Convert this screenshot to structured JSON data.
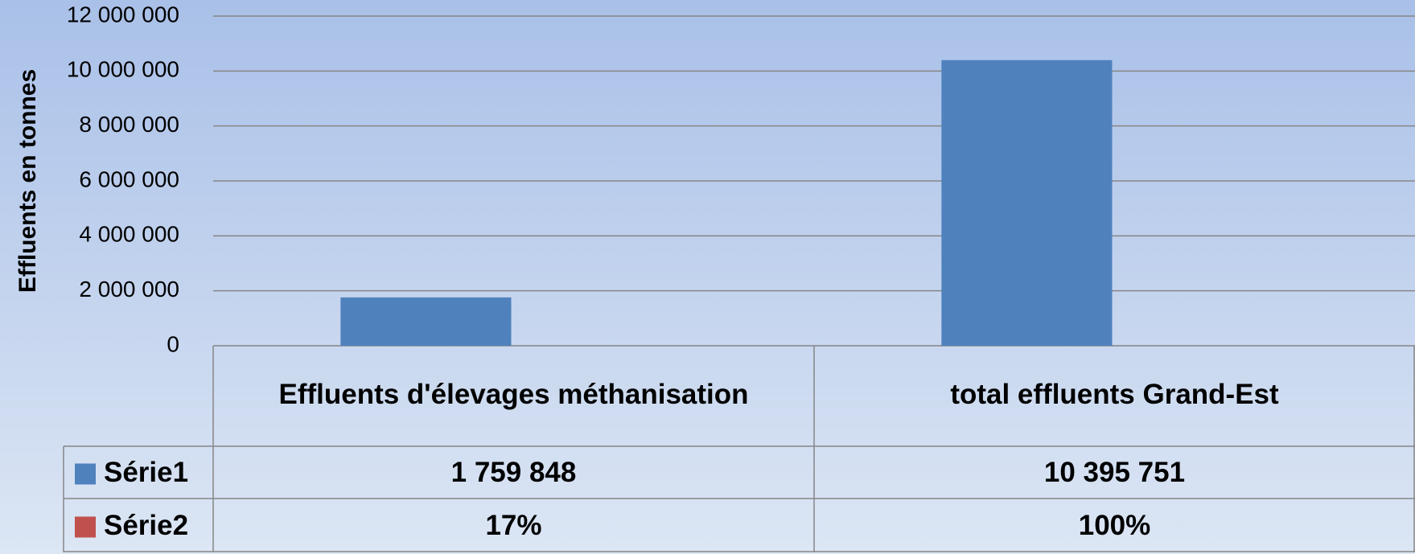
{
  "chart_data": {
    "type": "bar",
    "y_axis_label": "Effluents en tonnes",
    "categories": [
      "Effluents d'élevages méthanisation",
      "total effluents Grand-Est"
    ],
    "series": [
      {
        "name": "Série1",
        "color": "#4f81bd",
        "values": [
          1759848,
          10395751
        ],
        "value_labels": [
          "1 759 848",
          "10 395 751"
        ]
      },
      {
        "name": "Série2",
        "color": "#c0504d",
        "values": [
          17,
          100
        ],
        "value_labels": [
          "17%",
          "100%"
        ]
      }
    ],
    "ylim": [
      0,
      12000000
    ],
    "yticks": [
      {
        "value": 0,
        "label": "0"
      },
      {
        "value": 2000000,
        "label": "2 000 000"
      },
      {
        "value": 4000000,
        "label": "4 000 000"
      },
      {
        "value": 6000000,
        "label": "6 000 000"
      },
      {
        "value": 8000000,
        "label": "8 000 000"
      },
      {
        "value": 10000000,
        "label": "10 000 000"
      },
      {
        "value": 12000000,
        "label": "12 000 000"
      }
    ],
    "grid": true,
    "data_table": true
  }
}
